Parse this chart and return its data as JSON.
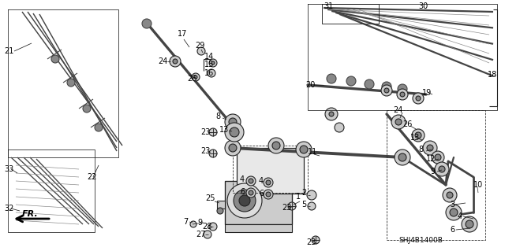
{
  "bg_color": "#ffffff",
  "line_color": "#222222",
  "line_width": 0.8,
  "part_num_fontsize": 7.0,
  "part_id": "SHJ4B1400B",
  "gray_light": "#cccccc",
  "gray_med": "#888888",
  "gray_dark": "#444444",
  "blade_color": "#555555"
}
